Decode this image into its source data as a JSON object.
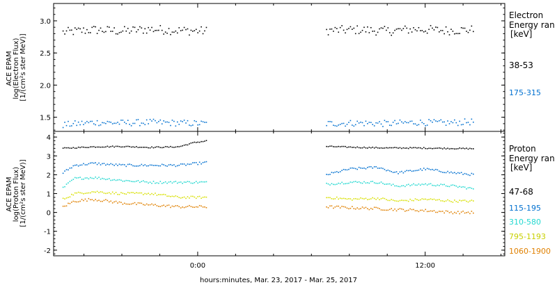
{
  "chart_data": [
    {
      "type": "scatter",
      "title": "",
      "ylabel_lines": [
        "ACE EPAM",
        "log(Electron Flux)",
        "[1/(cm²s ster MeV)]"
      ],
      "ylim": [
        1.28,
        3.27
      ],
      "y_ticks": [
        {
          "value": 1.5,
          "label": "1.5"
        },
        {
          "value": 2.0,
          "label": "2.0"
        },
        {
          "value": 2.5,
          "label": "2.5"
        },
        {
          "value": 3.0,
          "label": "3.0"
        }
      ],
      "legend_title_lines": [
        "Electron",
        "Energy ran",
        "[keV]"
      ],
      "series": [
        {
          "name": "38-53",
          "color": "#000000",
          "segments": [
            {
              "x": [
                -7.1,
                -5.5,
                -4.0,
                -2.5,
                -1.0,
                0.5
              ],
              "y": [
                2.82,
                2.86,
                2.84,
                2.87,
                2.85,
                2.84
              ]
            },
            {
              "x": [
                6.8,
                8.5,
                10.0,
                11.5,
                13.0,
                14.6
              ],
              "y": [
                2.85,
                2.86,
                2.84,
                2.87,
                2.85,
                2.86
              ]
            }
          ],
          "band": 0.07
        },
        {
          "name": "175-315",
          "color": "#0070d0",
          "segments": [
            {
              "x": [
                -7.1,
                -5.5,
                -4.0,
                -2.5,
                -1.0,
                0.5
              ],
              "y": [
                1.38,
                1.42,
                1.41,
                1.42,
                1.41,
                1.4
              ]
            },
            {
              "x": [
                6.8,
                8.5,
                10.0,
                11.5,
                13.0,
                14.6
              ],
              "y": [
                1.4,
                1.41,
                1.4,
                1.42,
                1.41,
                1.43
              ]
            }
          ],
          "band": 0.05
        }
      ]
    },
    {
      "type": "scatter",
      "title": "",
      "ylabel_lines": [
        "ACE EPAM",
        "log(Proton Flux)",
        "[1/(cm²s ster MeV)]"
      ],
      "ylim": [
        -2.3,
        4.3
      ],
      "y_ticks": [
        {
          "value": -2,
          "label": "-2"
        },
        {
          "value": -1,
          "label": "-1"
        },
        {
          "value": 0,
          "label": "0"
        },
        {
          "value": 1,
          "label": "1"
        },
        {
          "value": 2,
          "label": "2"
        },
        {
          "value": 3,
          "label": "3"
        },
        {
          "value": 4,
          "label": "4"
        }
      ],
      "legend_title_lines": [
        "Proton",
        "Energy ran",
        "[keV]"
      ],
      "series": [
        {
          "name": "47-68",
          "color": "#000000",
          "segments": [
            {
              "x": [
                -7.1,
                -5.5,
                -4.0,
                -2.5,
                -1.0,
                -0.2,
                0.5
              ],
              "y": [
                3.4,
                3.48,
                3.5,
                3.45,
                3.48,
                3.7,
                3.8
              ]
            },
            {
              "x": [
                6.8,
                8.5,
                10.0,
                11.5,
                13.0,
                14.6
              ],
              "y": [
                3.5,
                3.45,
                3.42,
                3.42,
                3.4,
                3.38
              ]
            }
          ],
          "band": 0.03
        },
        {
          "name": "115-195",
          "color": "#0070d0",
          "segments": [
            {
              "x": [
                -7.1,
                -6.5,
                -5.5,
                -4.0,
                -2.5,
                -1.0,
                0.5
              ],
              "y": [
                2.1,
                2.5,
                2.6,
                2.5,
                2.5,
                2.5,
                2.65
              ]
            },
            {
              "x": [
                6.8,
                8.0,
                9.5,
                10.5,
                12.0,
                13.5,
                14.6
              ],
              "y": [
                2.0,
                2.3,
                2.4,
                2.1,
                2.3,
                2.1,
                2.0
              ]
            }
          ],
          "band": 0.06
        },
        {
          "name": "310-580",
          "color": "#22d8d0",
          "segments": [
            {
              "x": [
                -7.1,
                -6.5,
                -5.5,
                -4.0,
                -2.5,
                -1.0,
                0.5
              ],
              "y": [
                1.3,
                1.8,
                1.85,
                1.7,
                1.6,
                1.6,
                1.6
              ]
            },
            {
              "x": [
                6.8,
                8.0,
                9.5,
                10.5,
                12.0,
                13.5,
                14.6
              ],
              "y": [
                1.5,
                1.6,
                1.6,
                1.4,
                1.5,
                1.4,
                1.25
              ]
            }
          ],
          "band": 0.06
        },
        {
          "name": "795-1193",
          "color": "#d8e000",
          "segments": [
            {
              "x": [
                -7.1,
                -6.5,
                -5.5,
                -4.0,
                -2.5,
                -1.0,
                0.5
              ],
              "y": [
                0.7,
                1.0,
                1.1,
                1.0,
                1.0,
                0.8,
                0.8
              ]
            },
            {
              "x": [
                6.8,
                8.0,
                9.5,
                10.5,
                12.0,
                13.5,
                14.6
              ],
              "y": [
                0.8,
                0.7,
                0.75,
                0.6,
                0.7,
                0.6,
                0.6
              ]
            }
          ],
          "band": 0.06
        },
        {
          "name": "1060-1900",
          "color": "#e08000",
          "segments": [
            {
              "x": [
                -7.1,
                -6.5,
                -5.5,
                -4.0,
                -2.5,
                -1.0,
                0.5
              ],
              "y": [
                0.3,
                0.6,
                0.7,
                0.5,
                0.4,
                0.3,
                0.3
              ]
            },
            {
              "x": [
                6.8,
                8.0,
                9.5,
                10.5,
                12.0,
                13.5,
                14.6
              ],
              "y": [
                0.3,
                0.25,
                0.2,
                0.15,
                0.1,
                0.0,
                0.0
              ]
            }
          ],
          "band": 0.07
        }
      ]
    }
  ],
  "x_axis": {
    "xlim": [
      -7.6,
      16.2
    ],
    "tick_values": [
      0,
      12,
      24
    ],
    "tick_labels": [
      "0:00",
      "12:00",
      "0:00"
    ],
    "minor_step": 2,
    "label": "hours:minutes, Mar. 23, 2017 - Mar. 25, 2017"
  }
}
